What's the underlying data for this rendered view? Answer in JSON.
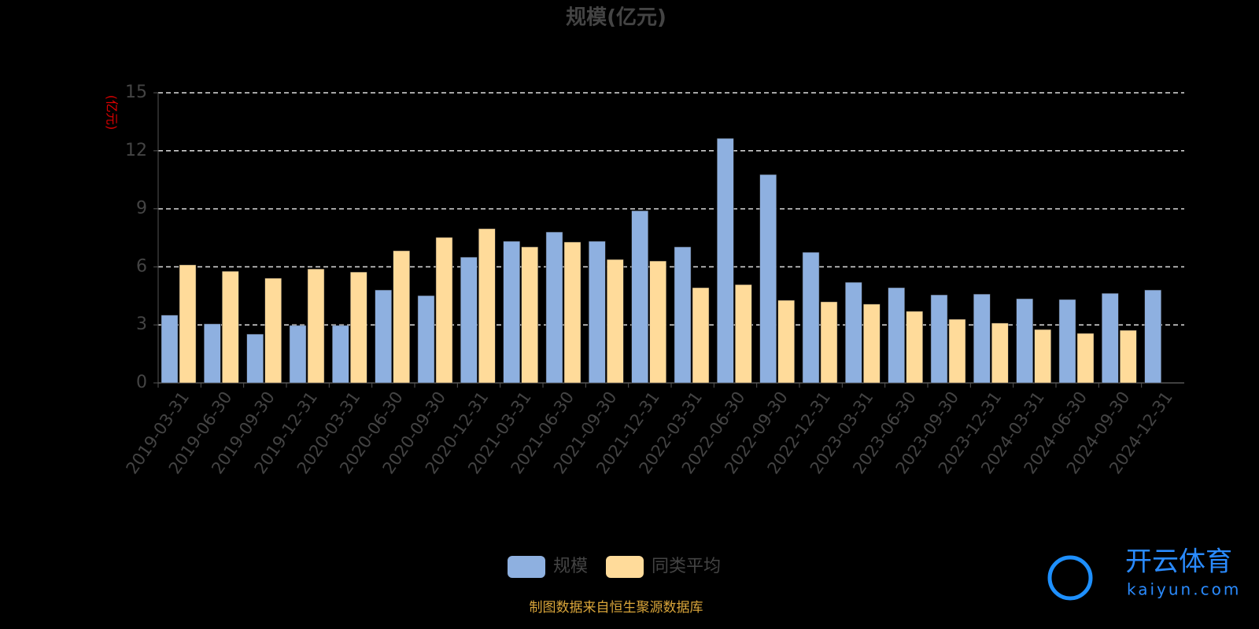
{
  "chart_data": {
    "type": "bar",
    "title": "规模(亿元)",
    "y_label": "(亿元)",
    "categories": [
      "2019-03-31",
      "2019-06-30",
      "2019-09-30",
      "2019-12-31",
      "2020-03-31",
      "2020-06-30",
      "2020-09-30",
      "2020-12-31",
      "2021-03-31",
      "2021-06-30",
      "2021-09-30",
      "2021-12-31",
      "2022-03-31",
      "2022-06-30",
      "2022-09-30",
      "2022-12-31",
      "2023-03-31",
      "2023-06-30",
      "2023-09-30",
      "2023-12-31",
      "2024-03-31",
      "2024-06-30",
      "2024-09-30",
      "2024-12-31"
    ],
    "series": [
      {
        "name": "规模",
        "color": "#8eb0e0",
        "values": [
          3.5,
          3.05,
          2.52,
          2.97,
          2.97,
          4.8,
          4.51,
          6.5,
          7.32,
          7.8,
          7.32,
          8.9,
          7.03,
          12.64,
          10.77,
          6.75,
          5.2,
          4.92,
          4.55,
          4.59,
          4.35,
          4.31,
          4.63,
          4.8
        ]
      },
      {
        "name": "同类平均",
        "color": "#ffdb9a",
        "values": [
          6.1,
          5.77,
          5.41,
          5.89,
          5.73,
          6.83,
          7.52,
          7.97,
          7.03,
          7.28,
          6.38,
          6.3,
          4.92,
          5.08,
          4.27,
          4.19,
          4.07,
          3.7,
          3.29,
          3.09,
          2.76,
          2.56,
          2.72,
          null
        ]
      }
    ],
    "ylim": [
      0,
      15
    ],
    "yticks": [
      0,
      3,
      6,
      9,
      12,
      15
    ],
    "grid": true,
    "source": "制图数据来自恒生聚源数据库",
    "watermark": [
      "开云体育",
      "kaiyun.com"
    ]
  }
}
